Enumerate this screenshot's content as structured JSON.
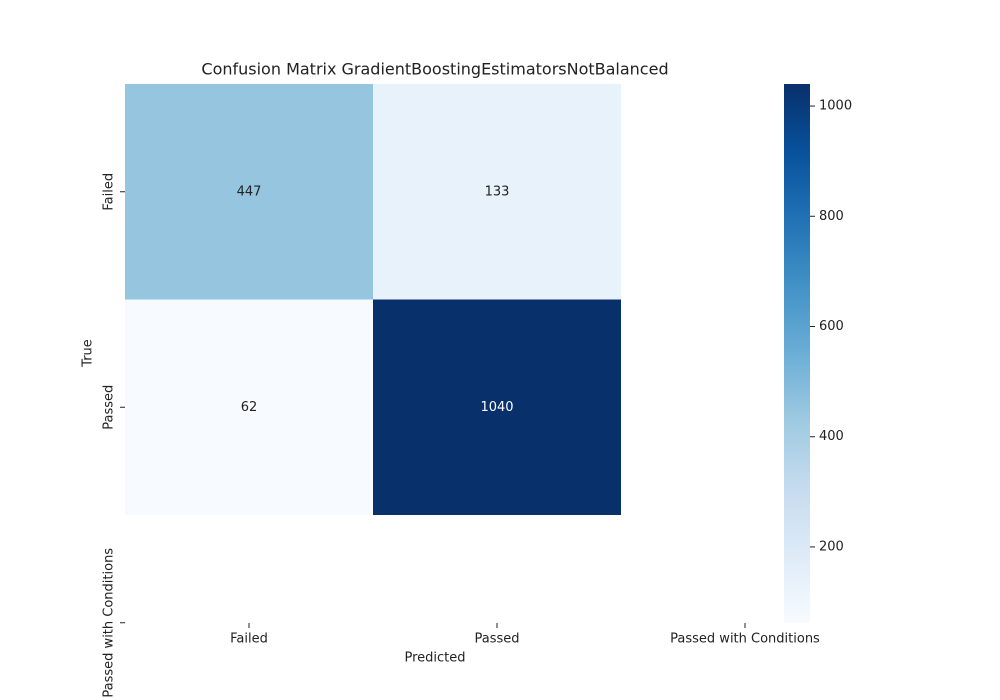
{
  "chart_data": {
    "type": "heatmap",
    "title": "Confusion Matrix GradientBoostingEstimatorsNotBalanced",
    "x_label": "Predicted",
    "y_label": "True",
    "x_categories": [
      "Failed",
      "Passed",
      "Passed with Conditions"
    ],
    "y_categories": [
      "Failed",
      "Passed",
      "Passed with Conditions"
    ],
    "values": [
      [
        447,
        133,
        null
      ],
      [
        62,
        1040,
        null
      ],
      [
        null,
        null,
        null
      ]
    ],
    "colormap": "Blues",
    "colorbar_lim": [
      62,
      1040
    ],
    "colorbar_ticks": [
      200,
      400,
      600,
      800,
      1000
    ]
  }
}
